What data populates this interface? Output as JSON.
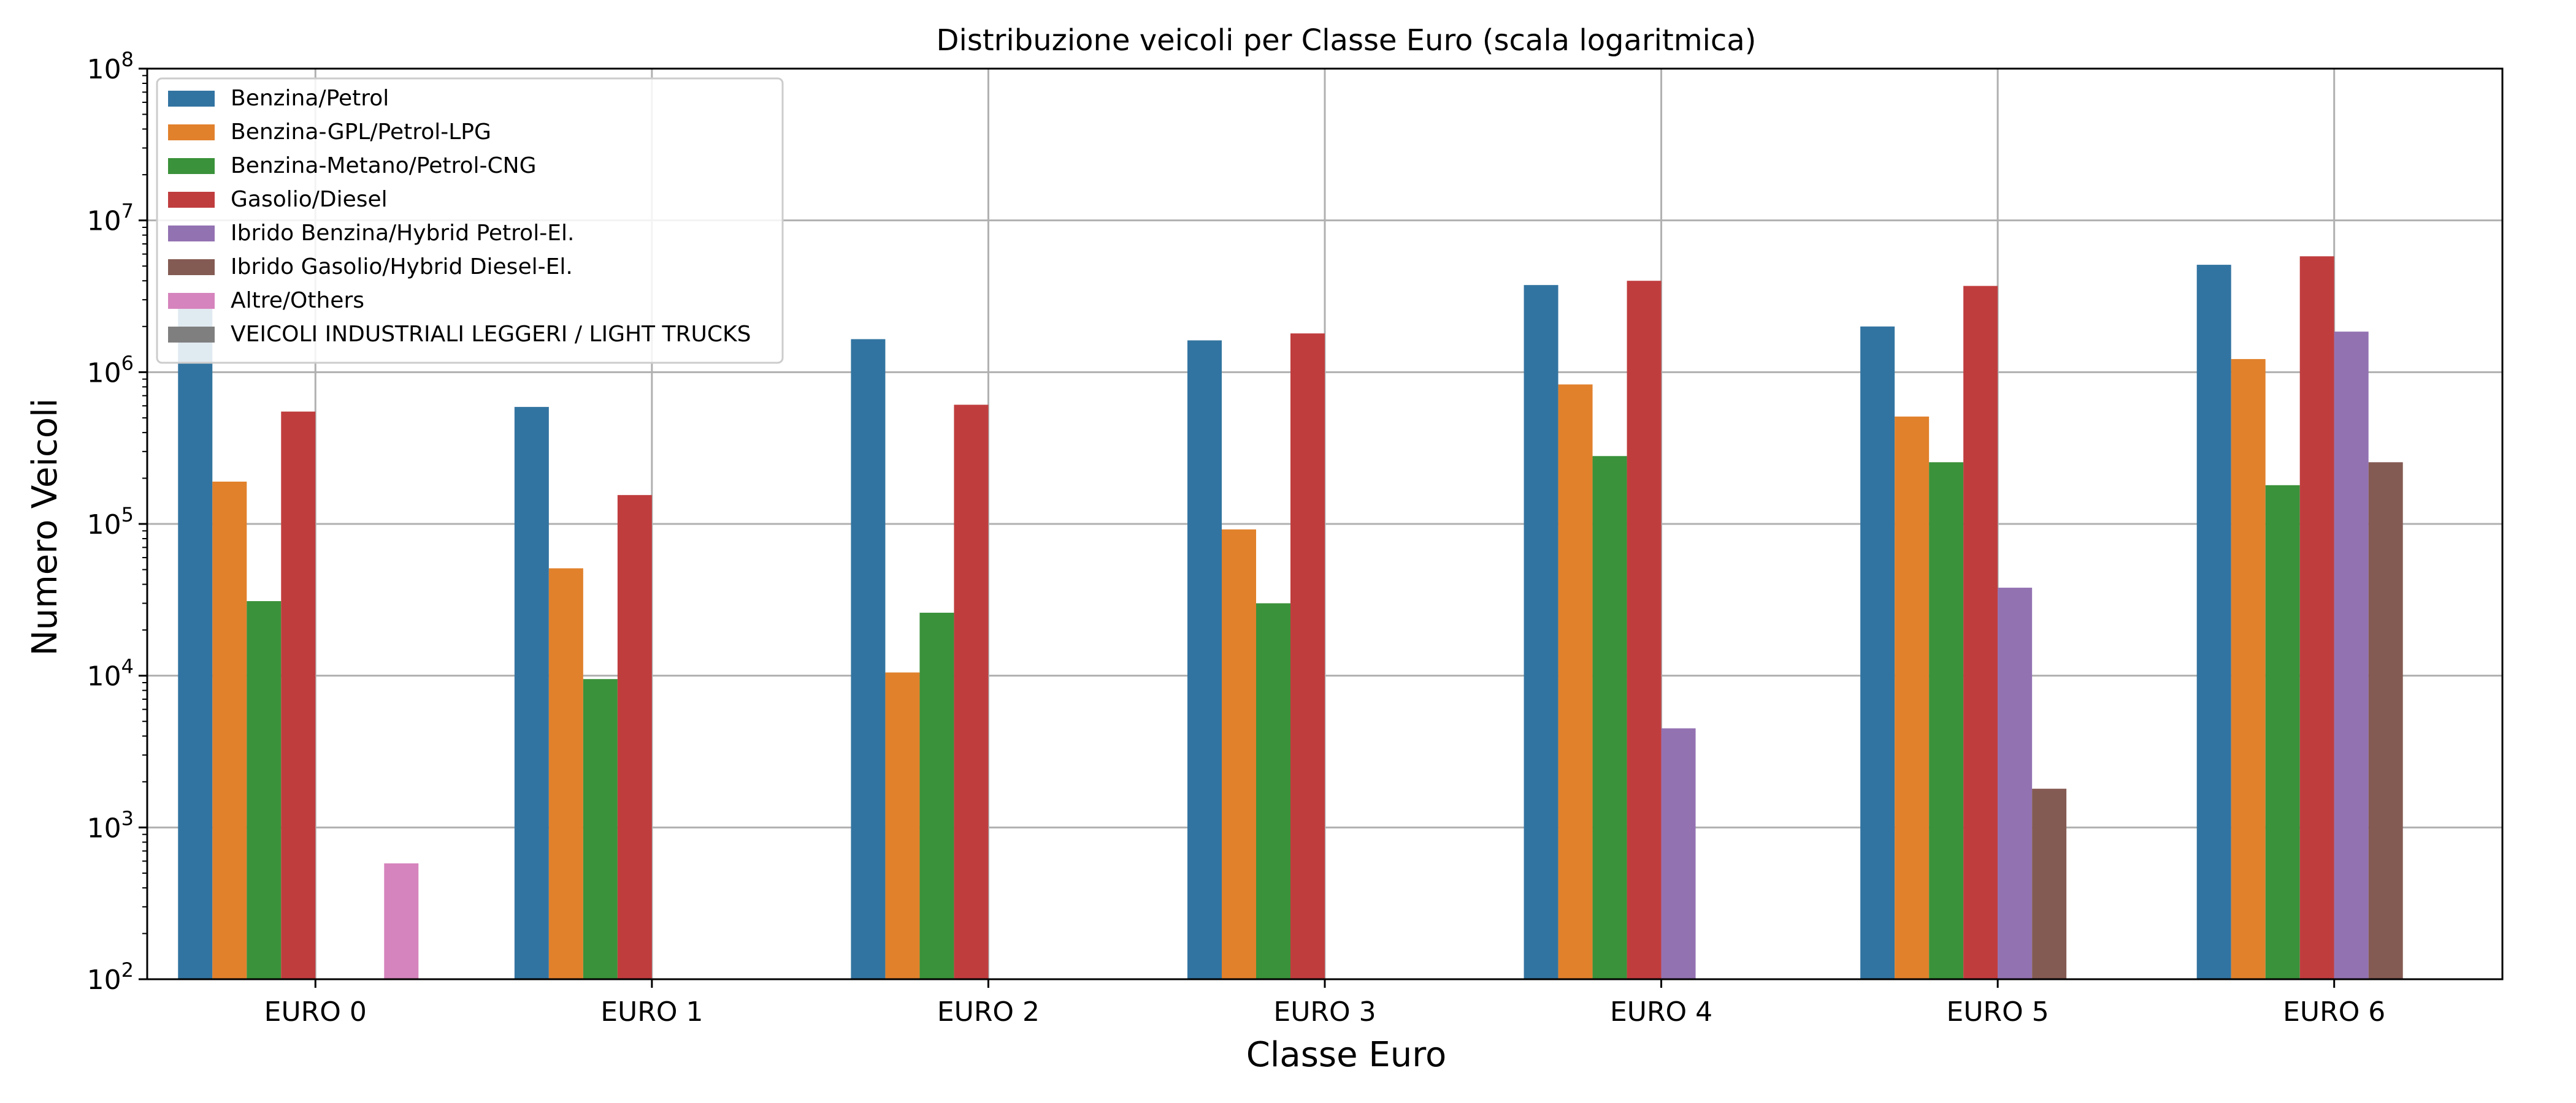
{
  "chart_data": {
    "type": "bar",
    "title": "Distribuzione veicoli per Classe Euro (scala logaritmica)",
    "xlabel": "Classe Euro",
    "ylabel": "Numero Veicoli",
    "yscale": "log",
    "ylim": [
      100,
      100000000
    ],
    "yticks": [
      {
        "base": "10",
        "exp": "2"
      },
      {
        "base": "10",
        "exp": "3"
      },
      {
        "base": "10",
        "exp": "4"
      },
      {
        "base": "10",
        "exp": "5"
      },
      {
        "base": "10",
        "exp": "6"
      },
      {
        "base": "10",
        "exp": "7"
      },
      {
        "base": "10",
        "exp": "8"
      }
    ],
    "grid": true,
    "legend_position": "top-left",
    "categories": [
      "EURO 0",
      "EURO 1",
      "EURO 2",
      "EURO 3",
      "EURO 4",
      "EURO 5",
      "EURO 6"
    ],
    "series": [
      {
        "name": "Benzina/Petrol",
        "color": "#3274a1",
        "values": [
          2700000,
          590000,
          1650000,
          1620000,
          3750000,
          2000000,
          5100000
        ]
      },
      {
        "name": "Benzina-GPL/Petrol-LPG",
        "color": "#e1812c",
        "values": [
          190000,
          51000,
          10500,
          92000,
          830000,
          510000,
          1220000
        ]
      },
      {
        "name": "Benzina-Metano/Petrol-CNG",
        "color": "#3a923a",
        "values": [
          31000,
          9500,
          26000,
          30000,
          280000,
          255000,
          180000
        ]
      },
      {
        "name": "Gasolio/Diesel",
        "color": "#c03d3e",
        "values": [
          550000,
          155000,
          610000,
          1800000,
          4000000,
          3700000,
          5800000
        ]
      },
      {
        "name": "Ibrido Benzina/Hybrid Petrol-El.",
        "color": "#9372b2",
        "values": [
          null,
          null,
          null,
          null,
          4500,
          38000,
          1850000
        ]
      },
      {
        "name": "Ibrido Gasolio/Hybrid Diesel-El.",
        "color": "#845b53",
        "values": [
          null,
          null,
          null,
          null,
          null,
          1800,
          255000
        ]
      },
      {
        "name": "Altre/Others",
        "color": "#d684bd",
        "values": [
          580,
          null,
          null,
          null,
          null,
          null,
          null
        ]
      },
      {
        "name": "VEICOLI INDUSTRIALI LEGGERI / LIGHT TRUCKS",
        "color": "#7f7f7f",
        "values": [
          null,
          null,
          null,
          null,
          null,
          null,
          null
        ]
      }
    ]
  }
}
